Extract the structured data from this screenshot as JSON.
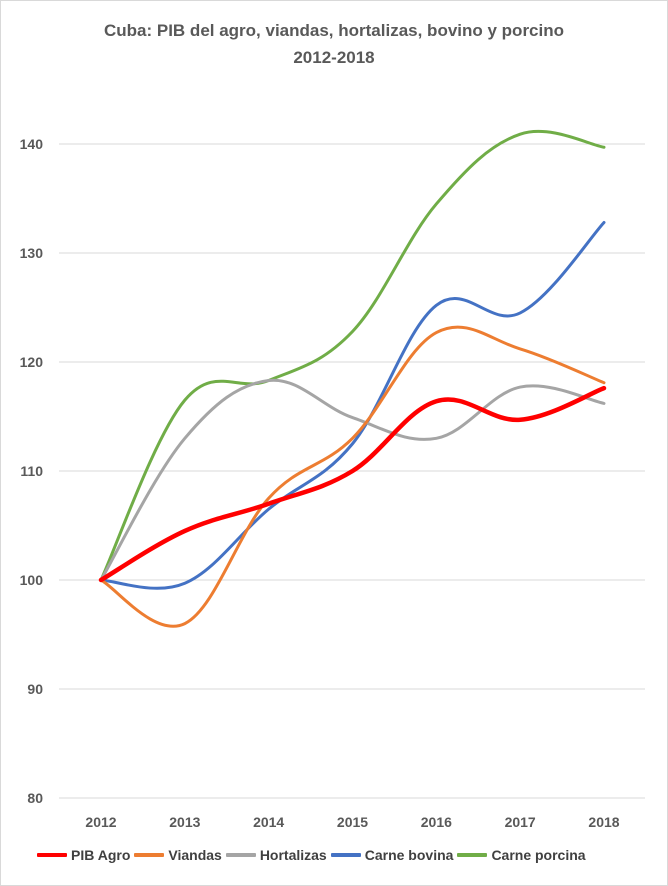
{
  "chart_data": {
    "type": "line",
    "title": "Cuba: PIB del agro, viandas, hortalizas, bovino y porcino",
    "subtitle": "2012-2018",
    "xlabel": "",
    "ylabel": "",
    "x": [
      "2012",
      "2013",
      "2014",
      "2015",
      "2016",
      "2017",
      "2018"
    ],
    "ylim": [
      80,
      145
    ],
    "yticks": [
      80,
      90,
      100,
      110,
      120,
      130,
      140
    ],
    "grid": true,
    "legend_position": "bottom",
    "series": [
      {
        "name": "PIB Agro",
        "color": "#ff0000",
        "values": [
          100,
          104.5,
          107.0,
          110.0,
          116.4,
          114.7,
          117.6
        ]
      },
      {
        "name": "Viandas",
        "color": "#ed7d31",
        "values": [
          100,
          96.0,
          107.5,
          113.0,
          122.7,
          121.2,
          118.1
        ]
      },
      {
        "name": "Hortalizas",
        "color": "#a5a5a5",
        "values": [
          100,
          113.0,
          118.3,
          114.9,
          113.0,
          117.7,
          116.2
        ]
      },
      {
        "name": "Carne bovina",
        "color": "#4472c4",
        "values": [
          100,
          99.7,
          106.5,
          112.5,
          125.2,
          124.5,
          132.8
        ]
      },
      {
        "name": "Carne porcina",
        "color": "#70ad47",
        "values": [
          100,
          116.5,
          118.3,
          122.8,
          134.5,
          140.9,
          139.7
        ]
      }
    ]
  }
}
